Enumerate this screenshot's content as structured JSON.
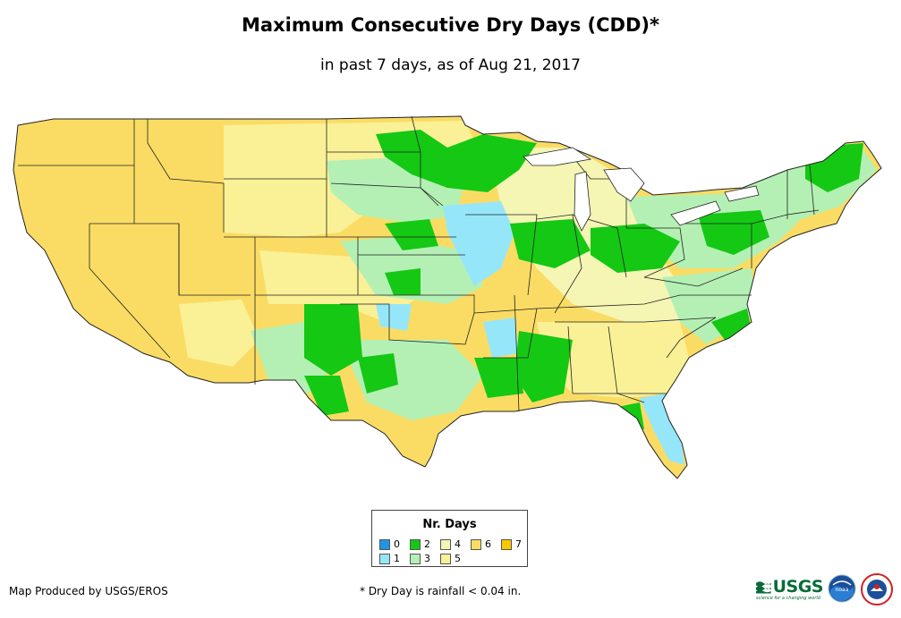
{
  "title": "Maximum Consecutive Dry Days (CDD)*",
  "subtitle": "in past 7 days, as of Aug 21, 2017",
  "legend": {
    "title": "Nr. Days",
    "items": [
      {
        "label": "0",
        "color": "#1e96e6"
      },
      {
        "label": "1",
        "color": "#96e6fa"
      },
      {
        "label": "2",
        "color": "#14c814"
      },
      {
        "label": "3",
        "color": "#b4f0b4"
      },
      {
        "label": "4",
        "color": "#f5f5b4"
      },
      {
        "label": "5",
        "color": "#faf096"
      },
      {
        "label": "6",
        "color": "#fadc64"
      },
      {
        "label": "7",
        "color": "#fac800"
      }
    ]
  },
  "footer": {
    "credit": "Map Produced by USGS/EROS",
    "note": "* Dry Day is rainfall < 0.04 in."
  },
  "logos": {
    "usgs": "USGS",
    "usgs_tagline": "science for a changing world",
    "noaa": "noaa"
  }
}
